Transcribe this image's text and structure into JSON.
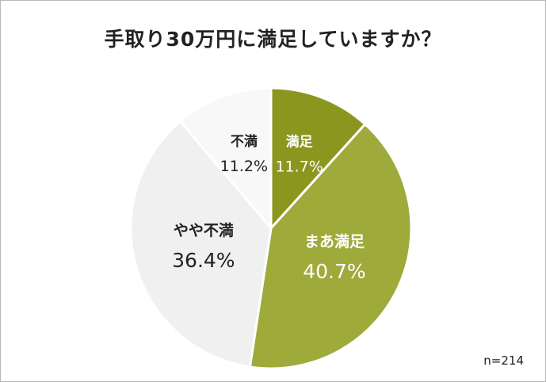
{
  "title": "手取り30万円に満足していますか？",
  "note": "n=214",
  "chart_data": {
    "type": "pie",
    "title": "手取り30万円に満足していますか？",
    "start": "12 o'clock",
    "direction": "clockwise",
    "slices": [
      {
        "label": "満足",
        "value": 11.7,
        "display": "11.7%",
        "color": "#8a961e",
        "text_color": "#ffffff"
      },
      {
        "label": "まあ満足",
        "value": 40.7,
        "display": "40.7%",
        "color": "#9eaa3a",
        "text_color": "#ffffff"
      },
      {
        "label": "やや不満",
        "value": 36.4,
        "display": "36.4%",
        "color": "#f0f0f0",
        "text_color": "#222222"
      },
      {
        "label": "不満",
        "value": 11.2,
        "display": "11.2%",
        "color": "#f8f8f8",
        "text_color": "#222222"
      }
    ]
  }
}
